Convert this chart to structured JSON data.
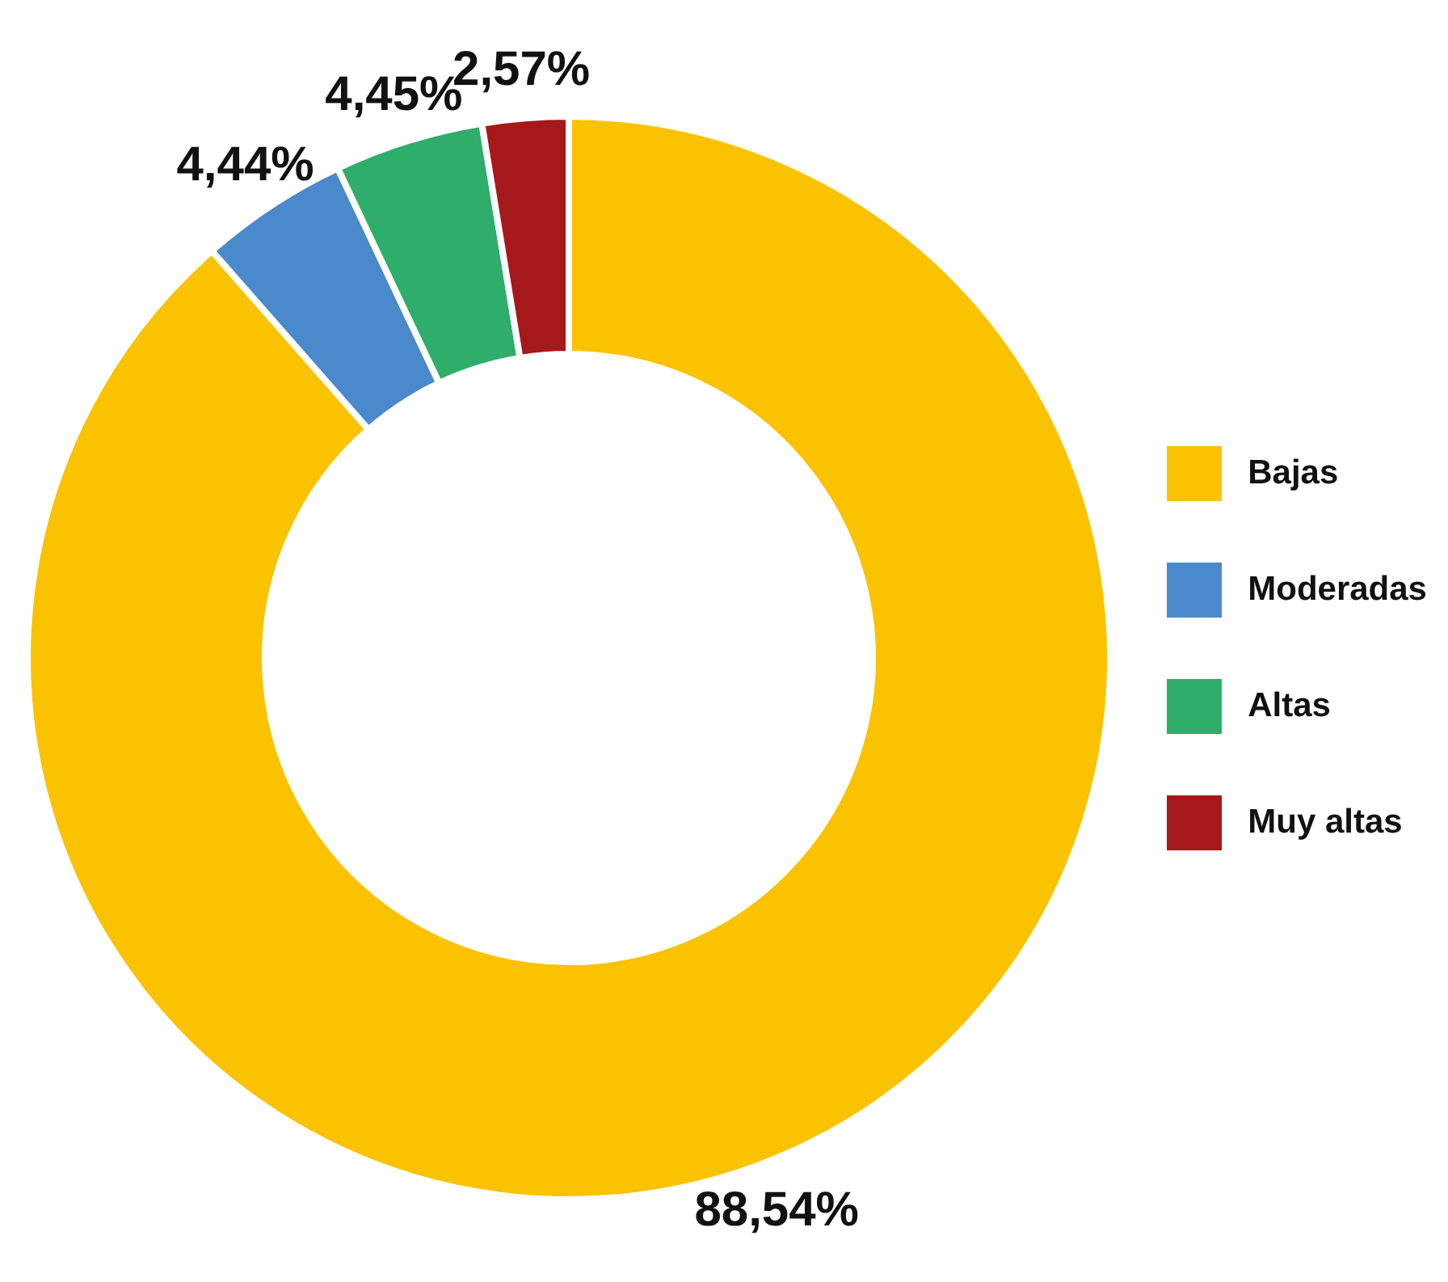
{
  "chart_data": {
    "type": "donut",
    "categories": [
      "Bajas",
      "Moderadas",
      "Altas",
      "Muy altas"
    ],
    "values": [
      88.54,
      4.44,
      4.45,
      2.57
    ],
    "colors": [
      "#fbc200",
      "#4a89cb",
      "#2fad6a",
      "#a5191b"
    ],
    "value_labels": [
      "88,54%",
      "4,44%",
      "4,45%",
      "2,57%"
    ],
    "legend": "right"
  }
}
